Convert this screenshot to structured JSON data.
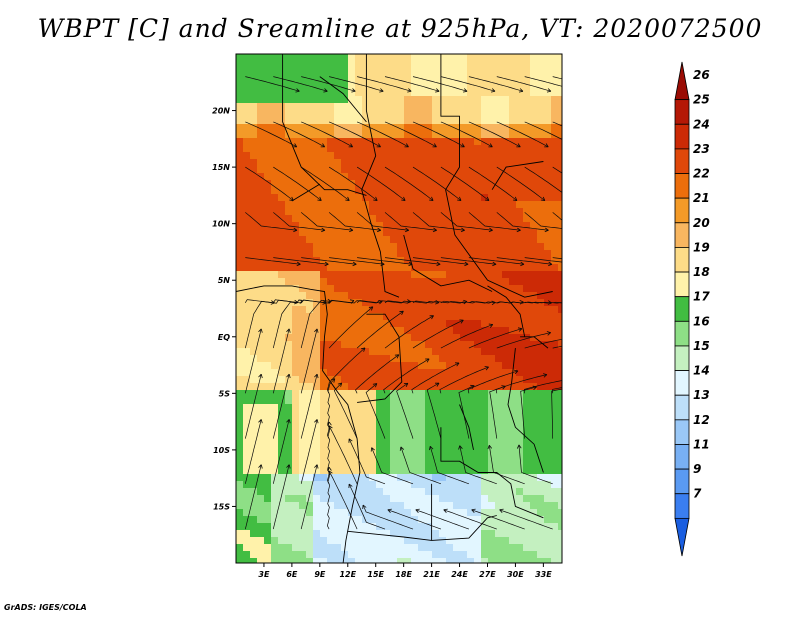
{
  "title": "WBPT [C] and Sreamline at 925hPa, VT: 2020072500",
  "credit": "GrADS: IGES/COLA",
  "map": {
    "lat_labels": [
      "20N",
      "15N",
      "10N",
      "5N",
      "EQ",
      "5S",
      "10S",
      "15S"
    ],
    "lon_labels": [
      "3E",
      "6E",
      "9E",
      "12E",
      "15E",
      "18E",
      "21E",
      "24E",
      "27E",
      "30E",
      "33E"
    ],
    "lat_range": [
      -20,
      25
    ],
    "lon_range": [
      0,
      35
    ]
  },
  "colorbar": {
    "levels": [
      "7",
      "9",
      "11",
      "12",
      "13",
      "14",
      "15",
      "16",
      "17",
      "18",
      "19",
      "20",
      "21",
      "22",
      "23",
      "24",
      "25",
      "26"
    ],
    "colors": [
      "#1a5ee0",
      "#3a7ef0",
      "#5a9af2",
      "#78b0f4",
      "#9ac8f7",
      "#bddff9",
      "#e2f6ff",
      "#c4f0c0",
      "#8edf86",
      "#42bd42",
      "#fff2aa",
      "#fddc88",
      "#f8b660",
      "#f39a28",
      "#ec6e0c",
      "#e0480a",
      "#cc2a06",
      "#b41806",
      "#9a0c04"
    ],
    "extends": "both"
  },
  "colors": {
    "frame": "#000000",
    "streamline": "#0a0a0a"
  }
}
